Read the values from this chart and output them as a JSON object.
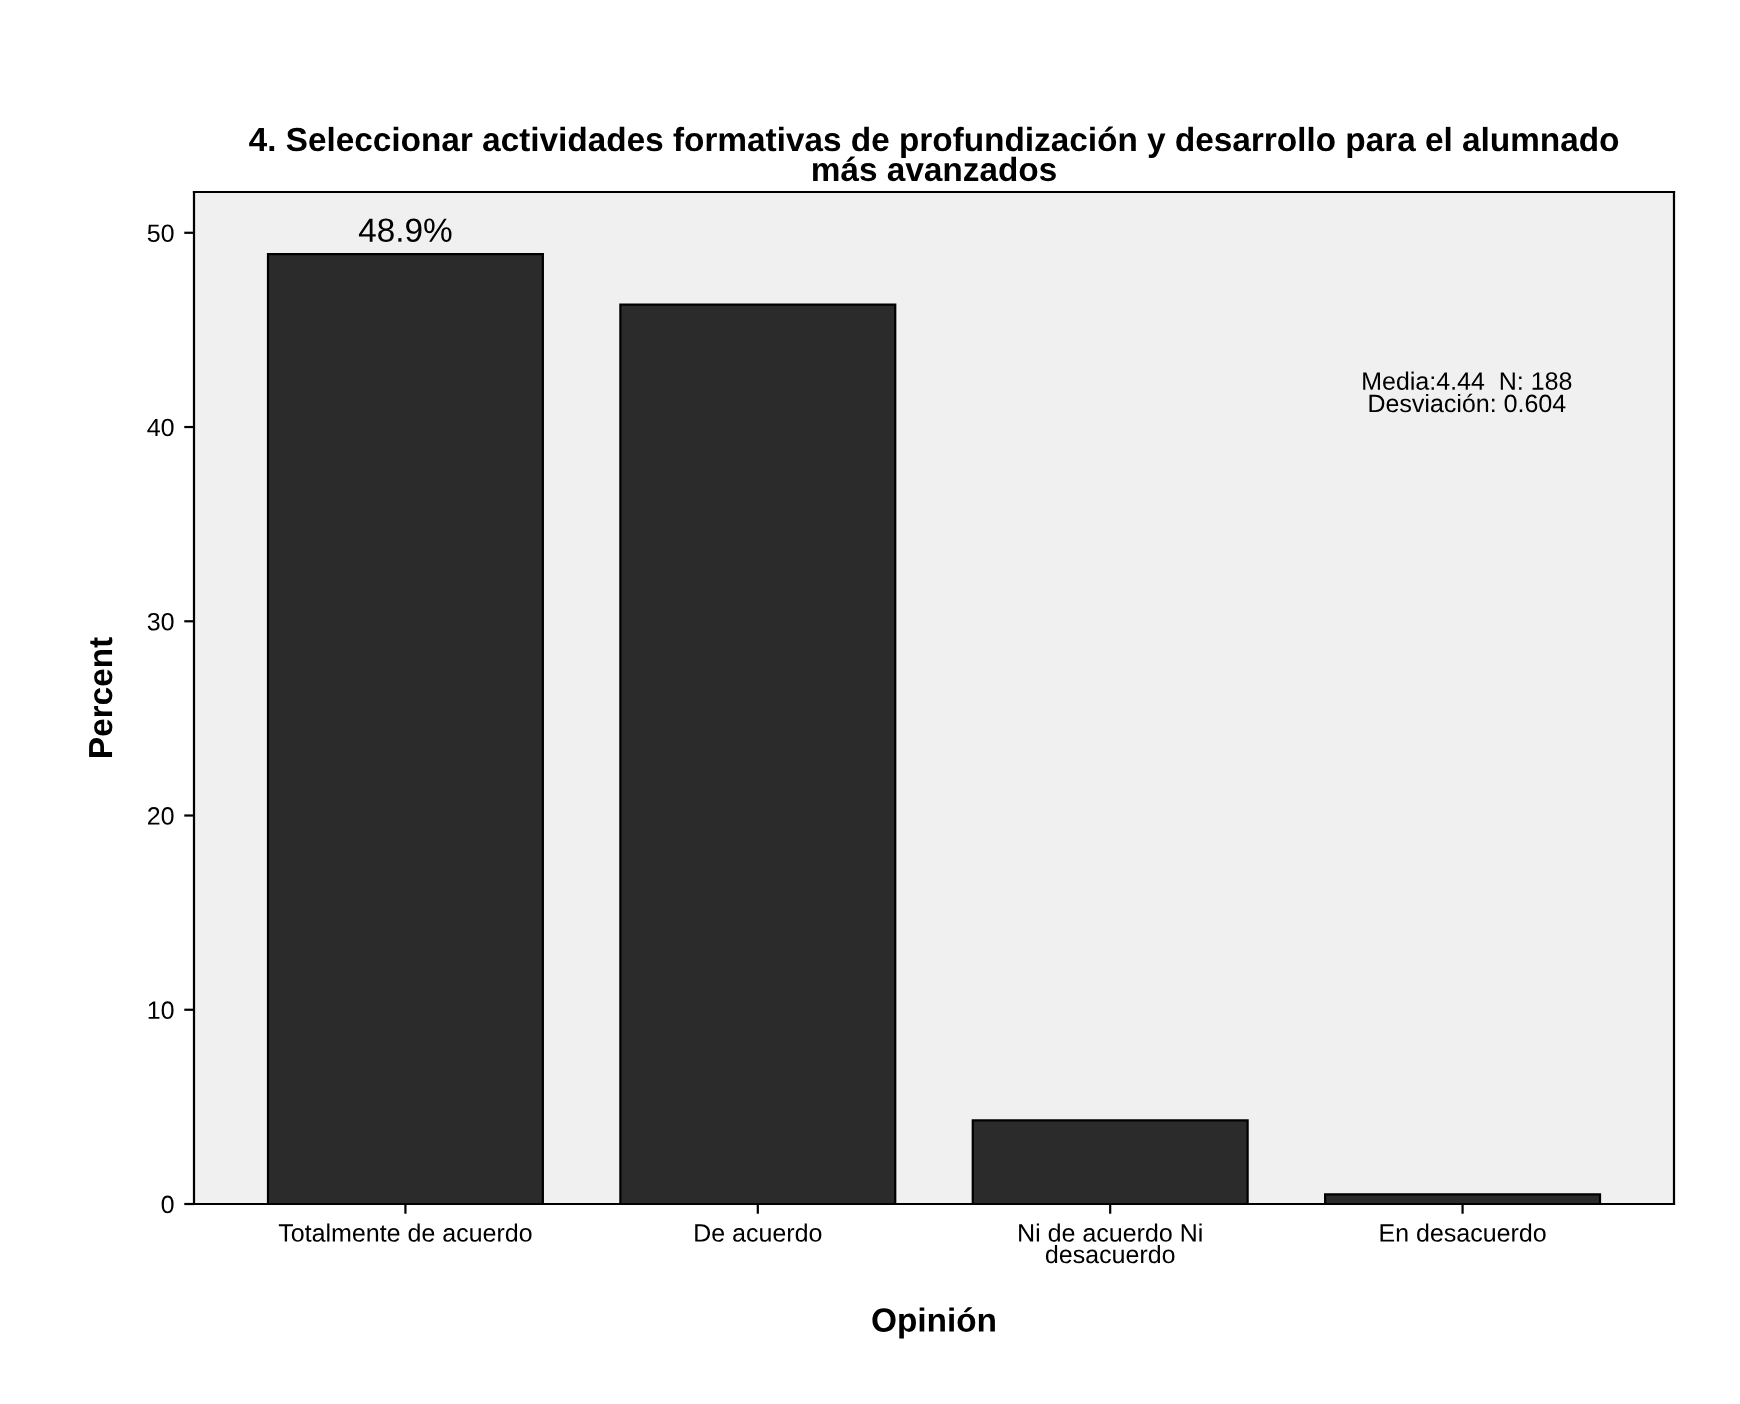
{
  "chart_data": {
    "type": "bar",
    "title": "4. Seleccionar actividades formativas de profundización y desarrollo para el alumnado\nmás avanzados",
    "xlabel": "Opinión",
    "ylabel": "Percent",
    "categories": [
      "Totalmente de acuerdo",
      "De acuerdo",
      "Ni de acuerdo Ni\ndesacuerdo",
      "En desacuerdo"
    ],
    "values": [
      48.9,
      46.3,
      4.3,
      0.5
    ],
    "value_labels": [
      "48.9%",
      null,
      null,
      null
    ],
    "color": "#2b2b2b",
    "ylim": [
      0,
      52.1
    ],
    "yticks": [
      0,
      10,
      20,
      30,
      40,
      50
    ],
    "grid": false,
    "legend": false,
    "annotations": [
      "Media:4.44  N: 188\nDesviación: 0.604"
    ]
  }
}
